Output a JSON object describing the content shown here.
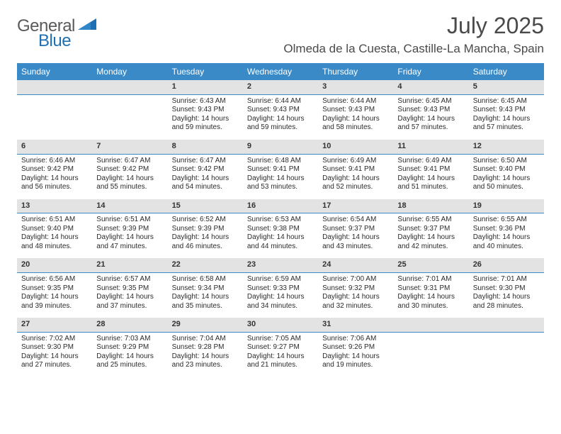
{
  "logo": {
    "word1": "General",
    "word2": "Blue",
    "text_color": "#5a5a5a",
    "accent_color": "#1f6fb2"
  },
  "header": {
    "month_title": "July 2025",
    "location": "Olmeda de la Cuesta, Castille-La Mancha, Spain"
  },
  "style": {
    "header_bg": "#3a8ac8",
    "header_text": "#ffffff",
    "daynum_bg": "#e3e3e3",
    "daynum_border": "#3a8ac8",
    "body_text": "#2b2b2b",
    "font_family": "Arial, Helvetica, sans-serif"
  },
  "weekdays": [
    "Sunday",
    "Monday",
    "Tuesday",
    "Wednesday",
    "Thursday",
    "Friday",
    "Saturday"
  ],
  "weeks": [
    [
      null,
      null,
      {
        "n": "1",
        "sunrise": "6:43 AM",
        "sunset": "9:43 PM",
        "dlh": "14",
        "dlm": "59"
      },
      {
        "n": "2",
        "sunrise": "6:44 AM",
        "sunset": "9:43 PM",
        "dlh": "14",
        "dlm": "59"
      },
      {
        "n": "3",
        "sunrise": "6:44 AM",
        "sunset": "9:43 PM",
        "dlh": "14",
        "dlm": "58"
      },
      {
        "n": "4",
        "sunrise": "6:45 AM",
        "sunset": "9:43 PM",
        "dlh": "14",
        "dlm": "57"
      },
      {
        "n": "5",
        "sunrise": "6:45 AM",
        "sunset": "9:43 PM",
        "dlh": "14",
        "dlm": "57"
      }
    ],
    [
      {
        "n": "6",
        "sunrise": "6:46 AM",
        "sunset": "9:42 PM",
        "dlh": "14",
        "dlm": "56"
      },
      {
        "n": "7",
        "sunrise": "6:47 AM",
        "sunset": "9:42 PM",
        "dlh": "14",
        "dlm": "55"
      },
      {
        "n": "8",
        "sunrise": "6:47 AM",
        "sunset": "9:42 PM",
        "dlh": "14",
        "dlm": "54"
      },
      {
        "n": "9",
        "sunrise": "6:48 AM",
        "sunset": "9:41 PM",
        "dlh": "14",
        "dlm": "53"
      },
      {
        "n": "10",
        "sunrise": "6:49 AM",
        "sunset": "9:41 PM",
        "dlh": "14",
        "dlm": "52"
      },
      {
        "n": "11",
        "sunrise": "6:49 AM",
        "sunset": "9:41 PM",
        "dlh": "14",
        "dlm": "51"
      },
      {
        "n": "12",
        "sunrise": "6:50 AM",
        "sunset": "9:40 PM",
        "dlh": "14",
        "dlm": "50"
      }
    ],
    [
      {
        "n": "13",
        "sunrise": "6:51 AM",
        "sunset": "9:40 PM",
        "dlh": "14",
        "dlm": "48"
      },
      {
        "n": "14",
        "sunrise": "6:51 AM",
        "sunset": "9:39 PM",
        "dlh": "14",
        "dlm": "47"
      },
      {
        "n": "15",
        "sunrise": "6:52 AM",
        "sunset": "9:39 PM",
        "dlh": "14",
        "dlm": "46"
      },
      {
        "n": "16",
        "sunrise": "6:53 AM",
        "sunset": "9:38 PM",
        "dlh": "14",
        "dlm": "44"
      },
      {
        "n": "17",
        "sunrise": "6:54 AM",
        "sunset": "9:37 PM",
        "dlh": "14",
        "dlm": "43"
      },
      {
        "n": "18",
        "sunrise": "6:55 AM",
        "sunset": "9:37 PM",
        "dlh": "14",
        "dlm": "42"
      },
      {
        "n": "19",
        "sunrise": "6:55 AM",
        "sunset": "9:36 PM",
        "dlh": "14",
        "dlm": "40"
      }
    ],
    [
      {
        "n": "20",
        "sunrise": "6:56 AM",
        "sunset": "9:35 PM",
        "dlh": "14",
        "dlm": "39"
      },
      {
        "n": "21",
        "sunrise": "6:57 AM",
        "sunset": "9:35 PM",
        "dlh": "14",
        "dlm": "37"
      },
      {
        "n": "22",
        "sunrise": "6:58 AM",
        "sunset": "9:34 PM",
        "dlh": "14",
        "dlm": "35"
      },
      {
        "n": "23",
        "sunrise": "6:59 AM",
        "sunset": "9:33 PM",
        "dlh": "14",
        "dlm": "34"
      },
      {
        "n": "24",
        "sunrise": "7:00 AM",
        "sunset": "9:32 PM",
        "dlh": "14",
        "dlm": "32"
      },
      {
        "n": "25",
        "sunrise": "7:01 AM",
        "sunset": "9:31 PM",
        "dlh": "14",
        "dlm": "30"
      },
      {
        "n": "26",
        "sunrise": "7:01 AM",
        "sunset": "9:30 PM",
        "dlh": "14",
        "dlm": "28"
      }
    ],
    [
      {
        "n": "27",
        "sunrise": "7:02 AM",
        "sunset": "9:30 PM",
        "dlh": "14",
        "dlm": "27"
      },
      {
        "n": "28",
        "sunrise": "7:03 AM",
        "sunset": "9:29 PM",
        "dlh": "14",
        "dlm": "25"
      },
      {
        "n": "29",
        "sunrise": "7:04 AM",
        "sunset": "9:28 PM",
        "dlh": "14",
        "dlm": "23"
      },
      {
        "n": "30",
        "sunrise": "7:05 AM",
        "sunset": "9:27 PM",
        "dlh": "14",
        "dlm": "21"
      },
      {
        "n": "31",
        "sunrise": "7:06 AM",
        "sunset": "9:26 PM",
        "dlh": "14",
        "dlm": "19"
      },
      null,
      null
    ]
  ],
  "labels": {
    "sunrise_prefix": "Sunrise: ",
    "sunset_prefix": "Sunset: ",
    "daylight_prefix": "Daylight: ",
    "hours_word": " hours",
    "and_word": "and ",
    "minutes_word": " minutes."
  }
}
